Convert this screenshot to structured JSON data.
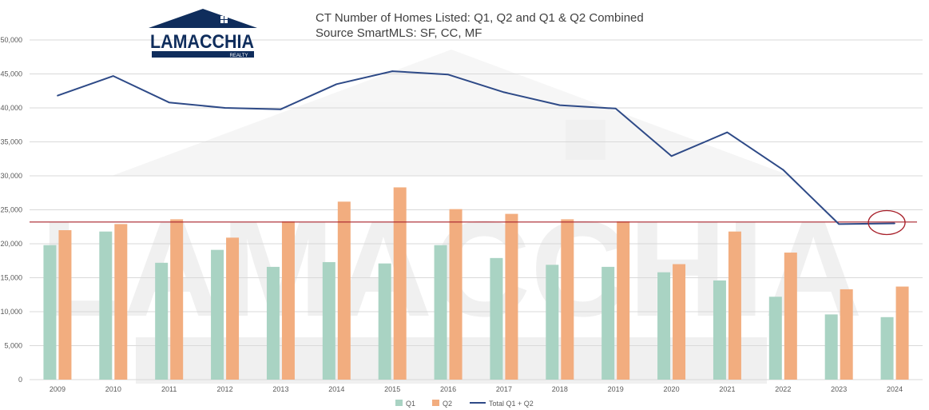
{
  "logo": {
    "name": "LAMACCHIA",
    "tagline": "REALTY",
    "watermark": "LAMACCHIA"
  },
  "colors": {
    "q1": "#a9d3c3",
    "q2": "#f2ad7f",
    "total": "#2e4a87",
    "reference": "#a8202a",
    "grid": "#d9d9d9",
    "logo": "#0f2d5c"
  },
  "chart_data": {
    "type": "bar",
    "title": "CT Number of Homes Listed: Q1, Q2 and Q1 & Q2 Combined",
    "subtitle": "Source SmartMLS: SF, CC, MF",
    "categories": [
      "2009",
      "2010",
      "2011",
      "2012",
      "2013",
      "2014",
      "2015",
      "2016",
      "2017",
      "2018",
      "2019",
      "2020",
      "2021",
      "2022",
      "2023",
      "2024"
    ],
    "series": [
      {
        "name": "Q1",
        "type": "bar",
        "values": [
          19800,
          21800,
          17200,
          19100,
          16600,
          17300,
          17100,
          19800,
          17900,
          16900,
          16600,
          15800,
          14600,
          12200,
          9600,
          9200
        ]
      },
      {
        "name": "Q2",
        "type": "bar",
        "values": [
          22000,
          22900,
          23600,
          20900,
          23300,
          26200,
          28300,
          25100,
          24400,
          23600,
          23300,
          17000,
          21800,
          18700,
          13300,
          13700
        ]
      },
      {
        "name": "Total Q1 + Q2",
        "type": "line",
        "values": [
          41800,
          44700,
          40800,
          40000,
          39800,
          43500,
          45400,
          44900,
          42300,
          40400,
          39900,
          32900,
          36400,
          30900,
          22900,
          23000
        ]
      }
    ],
    "reference_line": 23200,
    "yticks": [
      "0",
      "5,000",
      "10,000",
      "15,000",
      "20,000",
      "25,000",
      "30,000",
      "35,000",
      "40,000",
      "45,000",
      "50,000"
    ],
    "ylim": [
      0,
      50000
    ],
    "grid": true,
    "legend_position": "bottom-center",
    "annotation": "circle around 2024 total"
  }
}
